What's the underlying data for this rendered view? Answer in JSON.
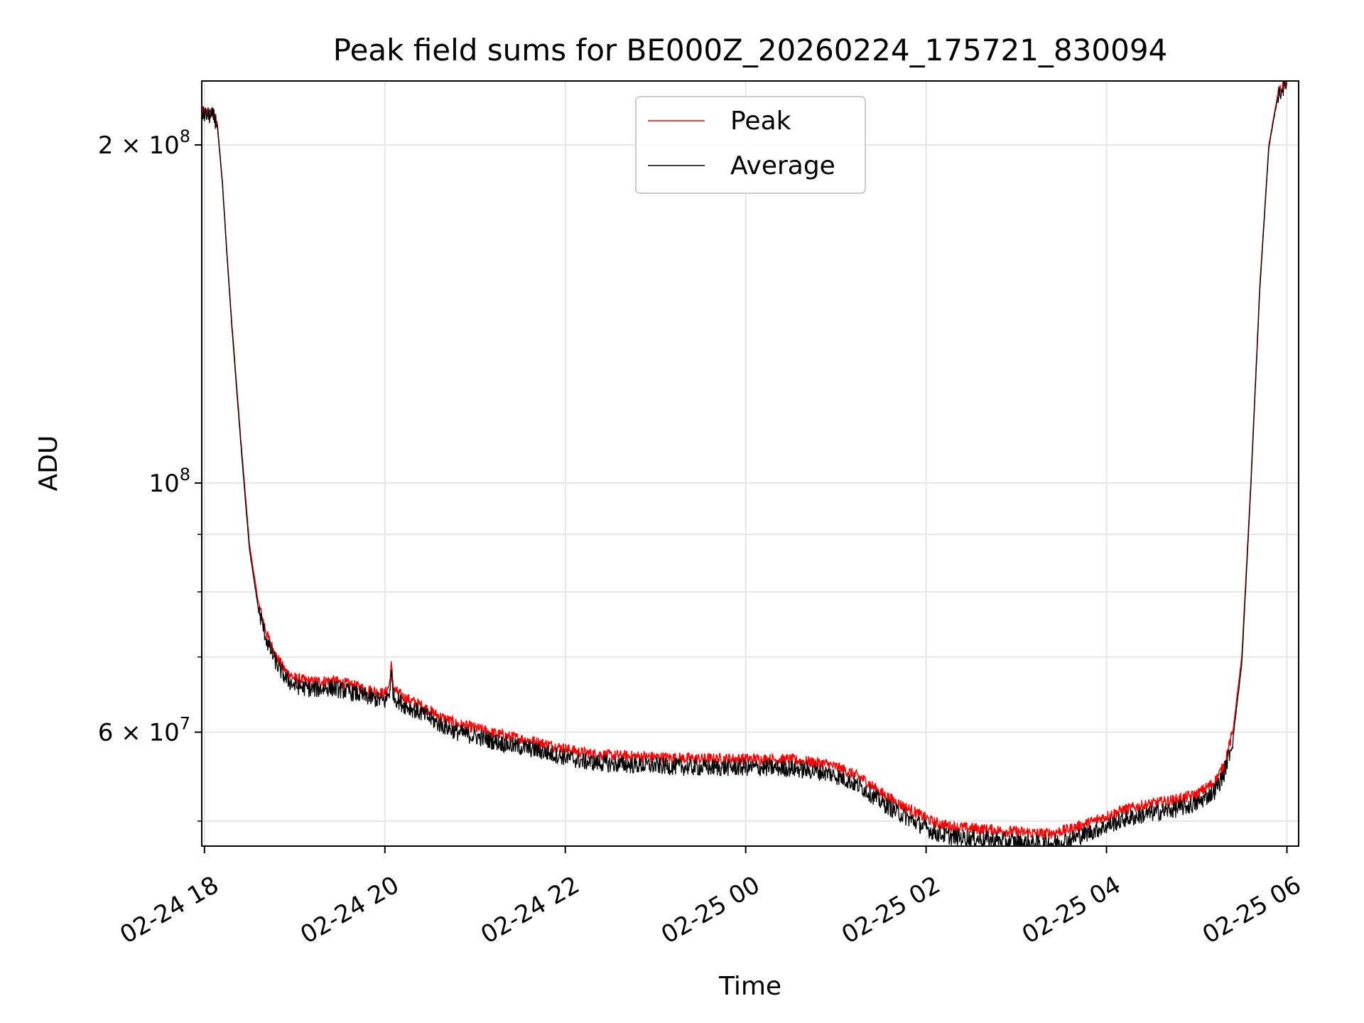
{
  "chart_data": {
    "type": "line",
    "title": "Peak field sums for BE000Z_20260224_175721_830094",
    "xlabel": "Time",
    "ylabel": "ADU",
    "yscale": "log",
    "xlim": [
      17.97,
      30.13
    ],
    "ylim": [
      47500000,
      228000000
    ],
    "grid": true,
    "legend_position": "top-center",
    "x_ticks": [
      {
        "value": 18,
        "label": "02-24 18"
      },
      {
        "value": 20,
        "label": "02-24 20"
      },
      {
        "value": 22,
        "label": "02-24 22"
      },
      {
        "value": 24,
        "label": "02-25 00"
      },
      {
        "value": 26,
        "label": "02-25 02"
      },
      {
        "value": 28,
        "label": "02-25 04"
      },
      {
        "value": 30,
        "label": "02-25 06"
      }
    ],
    "y_ticks_major": [
      {
        "value": 200000000,
        "mantissa": "2",
        "exponent": "8"
      },
      {
        "value": 100000000,
        "mantissa": "",
        "exponent": "8"
      },
      {
        "value": 60000000,
        "mantissa": "6",
        "exponent": "7"
      }
    ],
    "y_ticks_minor": [
      50000000,
      70000000,
      80000000,
      90000000
    ],
    "x_unit_note": "x values are hours since 2026-02-24 00:00",
    "series": [
      {
        "name": "Peak",
        "color": "#ff0000",
        "noise": 0.012,
        "offset": 1.01,
        "points": [
          [
            17.97,
            214000000
          ],
          [
            18.1,
            213000000
          ],
          [
            18.14,
            210000000
          ],
          [
            18.2,
            185000000
          ],
          [
            18.25,
            160000000
          ],
          [
            18.3,
            140000000
          ],
          [
            18.4,
            110000000
          ],
          [
            18.5,
            88000000
          ],
          [
            18.6,
            78000000
          ],
          [
            18.7,
            73000000
          ],
          [
            18.8,
            70000000
          ],
          [
            18.9,
            68000000
          ],
          [
            19.0,
            67000000
          ],
          [
            19.2,
            66500000
          ],
          [
            19.4,
            66700000
          ],
          [
            19.6,
            66200000
          ],
          [
            19.8,
            65500000
          ],
          [
            20.0,
            64900000
          ],
          [
            20.05,
            66000000
          ],
          [
            20.07,
            68800000
          ],
          [
            20.1,
            65500000
          ],
          [
            20.2,
            64500000
          ],
          [
            20.4,
            63400000
          ],
          [
            20.6,
            62000000
          ],
          [
            20.8,
            61000000
          ],
          [
            21.0,
            60500000
          ],
          [
            21.2,
            59900000
          ],
          [
            21.4,
            59400000
          ],
          [
            21.6,
            59000000
          ],
          [
            22.0,
            58000000
          ],
          [
            22.2,
            57500000
          ],
          [
            22.5,
            57200000
          ],
          [
            23.0,
            57000000
          ],
          [
            23.5,
            56800000
          ],
          [
            24.0,
            56800000
          ],
          [
            24.5,
            56700000
          ],
          [
            24.9,
            56200000
          ],
          [
            25.1,
            55500000
          ],
          [
            25.3,
            54500000
          ],
          [
            25.5,
            53000000
          ],
          [
            25.7,
            51800000
          ],
          [
            25.9,
            50800000
          ],
          [
            26.1,
            49800000
          ],
          [
            26.3,
            49400000
          ],
          [
            26.6,
            49200000
          ],
          [
            27.0,
            48900000
          ],
          [
            27.3,
            48700000
          ],
          [
            27.4,
            48800000
          ],
          [
            27.6,
            49200000
          ],
          [
            27.8,
            49800000
          ],
          [
            28.0,
            50500000
          ],
          [
            28.2,
            51200000
          ],
          [
            28.5,
            51800000
          ],
          [
            28.8,
            52300000
          ],
          [
            29.0,
            52800000
          ],
          [
            29.2,
            54200000
          ],
          [
            29.3,
            56000000
          ],
          [
            29.4,
            60000000
          ],
          [
            29.5,
            70000000
          ],
          [
            29.6,
            100000000
          ],
          [
            29.7,
            150000000
          ],
          [
            29.8,
            200000000
          ],
          [
            29.9,
            222000000
          ],
          [
            30.0,
            228000000
          ]
        ]
      },
      {
        "name": "Average",
        "color": "#000000",
        "noise": 0.018,
        "offset": 0.985,
        "points": [
          [
            17.97,
            213000000
          ],
          [
            18.1,
            212000000
          ],
          [
            18.14,
            209000000
          ],
          [
            18.2,
            184000000
          ],
          [
            18.25,
            159000000
          ],
          [
            18.3,
            139000000
          ],
          [
            18.4,
            109000000
          ],
          [
            18.5,
            87000000
          ],
          [
            18.6,
            77000000
          ],
          [
            18.7,
            72000000
          ],
          [
            18.8,
            69000000
          ],
          [
            18.9,
            67000000
          ],
          [
            19.0,
            66000000
          ],
          [
            19.2,
            65500000
          ],
          [
            19.4,
            65700000
          ],
          [
            19.6,
            65200000
          ],
          [
            19.8,
            64500000
          ],
          [
            20.0,
            63900000
          ],
          [
            20.05,
            65000000
          ],
          [
            20.07,
            67500000
          ],
          [
            20.1,
            64500000
          ],
          [
            20.2,
            63500000
          ],
          [
            20.4,
            62400000
          ],
          [
            20.6,
            61000000
          ],
          [
            20.8,
            60000000
          ],
          [
            21.0,
            59500000
          ],
          [
            21.2,
            58900000
          ],
          [
            21.4,
            58400000
          ],
          [
            21.6,
            58000000
          ],
          [
            22.0,
            57000000
          ],
          [
            22.2,
            56500000
          ],
          [
            22.5,
            56200000
          ],
          [
            23.0,
            56000000
          ],
          [
            23.5,
            55800000
          ],
          [
            24.0,
            55800000
          ],
          [
            24.5,
            55700000
          ],
          [
            24.9,
            55200000
          ],
          [
            25.1,
            54500000
          ],
          [
            25.3,
            53500000
          ],
          [
            25.5,
            52000000
          ],
          [
            25.7,
            50800000
          ],
          [
            25.9,
            49800000
          ],
          [
            26.1,
            48800000
          ],
          [
            26.3,
            48400000
          ],
          [
            26.6,
            48200000
          ],
          [
            27.0,
            47900000
          ],
          [
            27.3,
            47700000
          ],
          [
            27.4,
            47800000
          ],
          [
            27.6,
            48200000
          ],
          [
            27.8,
            48800000
          ],
          [
            28.0,
            49500000
          ],
          [
            28.2,
            50200000
          ],
          [
            28.5,
            50800000
          ],
          [
            28.8,
            51300000
          ],
          [
            29.0,
            51800000
          ],
          [
            29.2,
            53200000
          ],
          [
            29.3,
            55000000
          ],
          [
            29.4,
            59000000
          ],
          [
            29.5,
            69000000
          ],
          [
            29.6,
            99000000
          ],
          [
            29.7,
            149000000
          ],
          [
            29.8,
            199000000
          ],
          [
            29.9,
            221000000
          ],
          [
            30.0,
            228000000
          ]
        ]
      }
    ]
  }
}
